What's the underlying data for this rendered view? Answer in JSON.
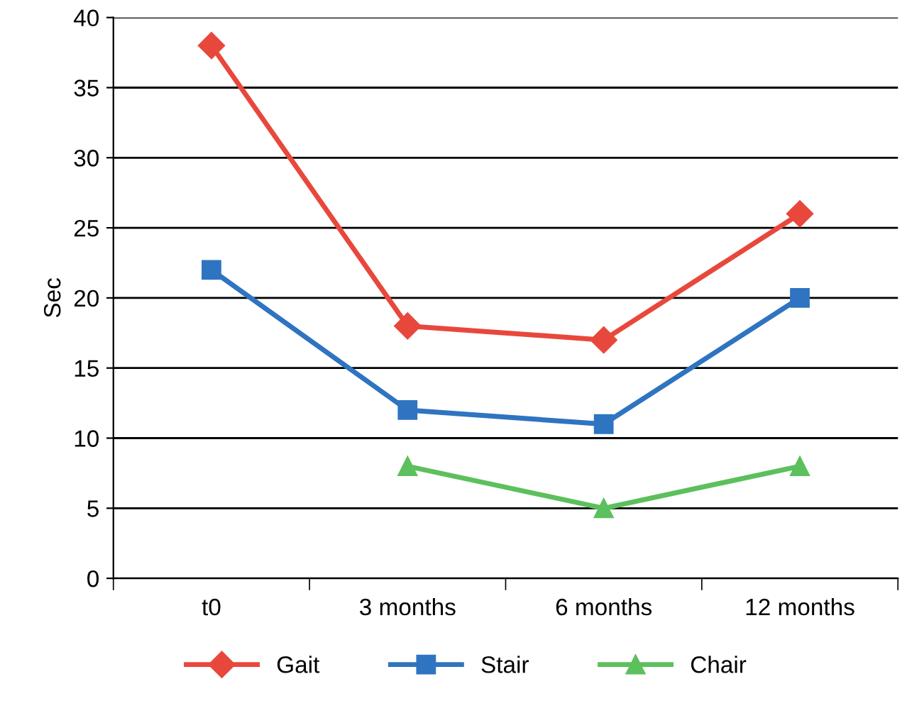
{
  "chart_data": {
    "type": "line",
    "ylabel": "Sec",
    "categories": [
      "t0",
      "3 months",
      "6 months",
      "12 months"
    ],
    "series": [
      {
        "name": "Gait",
        "color": "#e8483c",
        "marker": "diamond",
        "values": [
          38,
          18,
          17,
          26
        ]
      },
      {
        "name": "Stair",
        "color": "#2f74c0",
        "marker": "square",
        "values": [
          22,
          12,
          11,
          20
        ]
      },
      {
        "name": "Chair",
        "color": "#5cc05c",
        "marker": "triangle",
        "values": [
          null,
          8,
          5,
          8
        ]
      }
    ],
    "ylim": [
      0,
      40
    ],
    "yticks": [
      0,
      5,
      10,
      15,
      20,
      25,
      30,
      35,
      40
    ],
    "grid": "y",
    "legend": "bottom",
    "line_style": "solid"
  }
}
